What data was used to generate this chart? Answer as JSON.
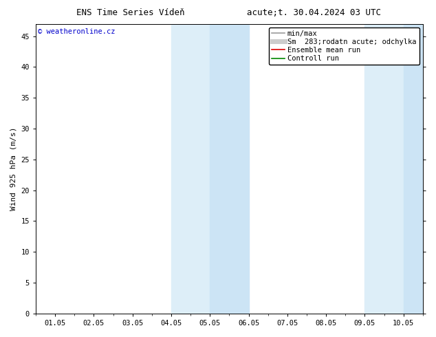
{
  "title_left": "ENS Time Series Vídeň",
  "title_right": "acute;t. 30.04.2024 03 UTC",
  "ylabel": "Wind 925 hPa (m/s)",
  "watermark": "© weatheronline.cz",
  "watermark_color": "#0000cc",
  "ylim": [
    0,
    47
  ],
  "yticks": [
    0,
    5,
    10,
    15,
    20,
    25,
    30,
    35,
    40,
    45
  ],
  "xtick_labels": [
    "01.05",
    "02.05",
    "03.05",
    "04.05",
    "05.05",
    "06.05",
    "07.05",
    "08.05",
    "09.05",
    "10.05"
  ],
  "xtick_positions": [
    0,
    1,
    2,
    3,
    4,
    5,
    6,
    7,
    8,
    9
  ],
  "xlim": [
    -0.5,
    9.5
  ],
  "shaded_bands": [
    {
      "xmin": 3.0,
      "xmax": 4.0,
      "color": "#ddeef8"
    },
    {
      "xmin": 4.0,
      "xmax": 5.0,
      "color": "#cce4f5"
    },
    {
      "xmin": 8.0,
      "xmax": 9.0,
      "color": "#ddeef8"
    },
    {
      "xmin": 9.0,
      "xmax": 9.5,
      "color": "#cce4f5"
    }
  ],
  "legend_entries": [
    {
      "label": "min/max",
      "color": "#999999",
      "linewidth": 1.2,
      "linestyle": "-"
    },
    {
      "label": "Sm  283;rodatn acute; odchylka",
      "color": "#cccccc",
      "linewidth": 5,
      "linestyle": "-"
    },
    {
      "label": "Ensemble mean run",
      "color": "#dd0000",
      "linewidth": 1.2,
      "linestyle": "-"
    },
    {
      "label": "Controll run",
      "color": "#008800",
      "linewidth": 1.2,
      "linestyle": "-"
    }
  ],
  "bg_color": "#ffffff",
  "plot_bg_color": "#ffffff",
  "grid_color": "#cccccc",
  "tick_color": "#000000",
  "title_fontsize": 9,
  "axis_label_fontsize": 8,
  "tick_fontsize": 7.5,
  "legend_fontsize": 7.5,
  "watermark_fontsize": 7.5
}
